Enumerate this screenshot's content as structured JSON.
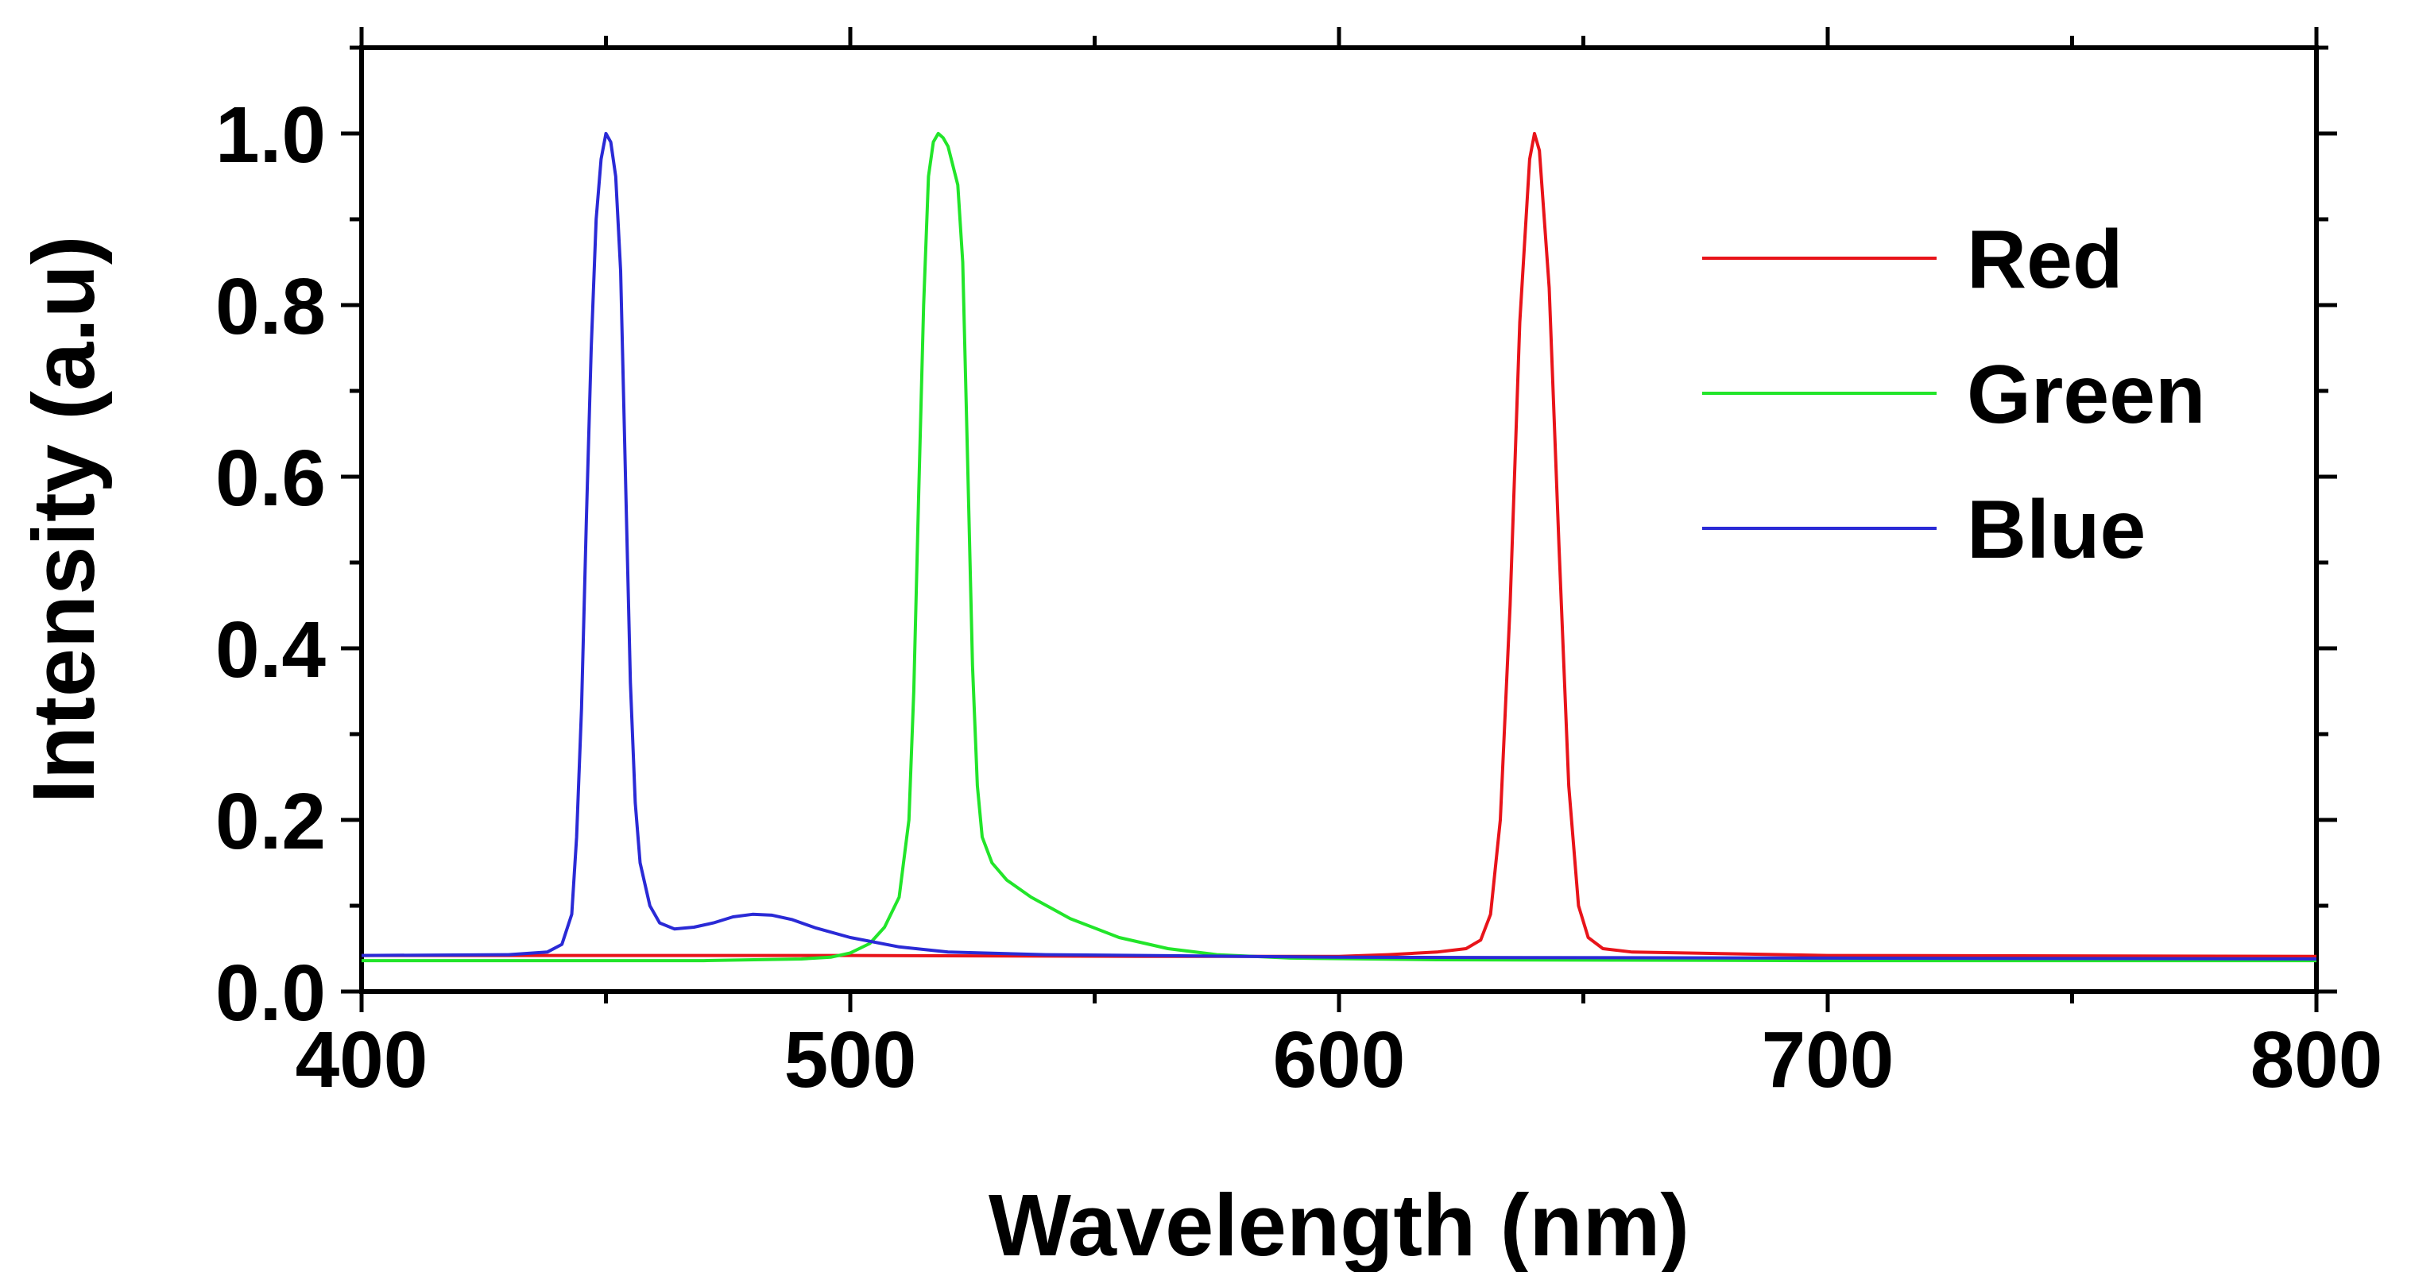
{
  "chart_data": {
    "type": "line",
    "title": "",
    "xlabel": "Wavelength (nm)",
    "ylabel": "Intensity (a.u)",
    "xlim": [
      400,
      800
    ],
    "ylim": [
      0.0,
      1.1
    ],
    "xticks": [
      400,
      500,
      600,
      700,
      800
    ],
    "xtick_labels": [
      "400",
      "500",
      "600",
      "700",
      "800"
    ],
    "yticks": [
      0.0,
      0.2,
      0.4,
      0.6,
      0.8,
      1.0
    ],
    "ytick_labels": [
      "0.0",
      "0.2",
      "0.4",
      "0.6",
      "0.8",
      "1.0"
    ],
    "grid": false,
    "legend_position": "top-right",
    "series": [
      {
        "name": "Red",
        "color": "#e8141a",
        "points": [
          [
            400,
            0.042
          ],
          [
            500,
            0.042
          ],
          [
            560,
            0.041
          ],
          [
            600,
            0.041
          ],
          [
            610,
            0.043
          ],
          [
            620,
            0.046
          ],
          [
            626,
            0.05
          ],
          [
            629,
            0.06
          ],
          [
            631,
            0.09
          ],
          [
            633,
            0.2
          ],
          [
            635,
            0.45
          ],
          [
            637,
            0.78
          ],
          [
            639,
            0.97
          ],
          [
            640,
            1.0
          ],
          [
            641,
            0.98
          ],
          [
            643,
            0.82
          ],
          [
            645,
            0.52
          ],
          [
            647,
            0.24
          ],
          [
            649,
            0.1
          ],
          [
            651,
            0.063
          ],
          [
            654,
            0.05
          ],
          [
            660,
            0.046
          ],
          [
            700,
            0.042
          ],
          [
            800,
            0.041
          ]
        ]
      },
      {
        "name": "Green",
        "color": "#22e52a",
        "points": [
          [
            400,
            0.036
          ],
          [
            470,
            0.036
          ],
          [
            490,
            0.038
          ],
          [
            496,
            0.04
          ],
          [
            500,
            0.045
          ],
          [
            504,
            0.056
          ],
          [
            507,
            0.075
          ],
          [
            510,
            0.11
          ],
          [
            512,
            0.2
          ],
          [
            513,
            0.35
          ],
          [
            514,
            0.58
          ],
          [
            515,
            0.8
          ],
          [
            516,
            0.95
          ],
          [
            517,
            0.99
          ],
          [
            518,
            1.0
          ],
          [
            519,
            0.995
          ],
          [
            520,
            0.985
          ],
          [
            522,
            0.94
          ],
          [
            523,
            0.85
          ],
          [
            524,
            0.62
          ],
          [
            525,
            0.38
          ],
          [
            526,
            0.24
          ],
          [
            527,
            0.18
          ],
          [
            529,
            0.15
          ],
          [
            532,
            0.13
          ],
          [
            537,
            0.11
          ],
          [
            545,
            0.085
          ],
          [
            555,
            0.063
          ],
          [
            565,
            0.05
          ],
          [
            575,
            0.043
          ],
          [
            590,
            0.039
          ],
          [
            620,
            0.037
          ],
          [
            700,
            0.036
          ],
          [
            800,
            0.036
          ]
        ]
      },
      {
        "name": "Blue",
        "color": "#2a2ad6",
        "points": [
          [
            400,
            0.042
          ],
          [
            430,
            0.043
          ],
          [
            438,
            0.046
          ],
          [
            441,
            0.055
          ],
          [
            443,
            0.09
          ],
          [
            444,
            0.18
          ],
          [
            445,
            0.33
          ],
          [
            446,
            0.55
          ],
          [
            447,
            0.75
          ],
          [
            448,
            0.9
          ],
          [
            449,
            0.97
          ],
          [
            450,
            1.0
          ],
          [
            451,
            0.99
          ],
          [
            452,
            0.95
          ],
          [
            453,
            0.84
          ],
          [
            454,
            0.6
          ],
          [
            455,
            0.36
          ],
          [
            456,
            0.22
          ],
          [
            457,
            0.15
          ],
          [
            459,
            0.1
          ],
          [
            461,
            0.08
          ],
          [
            464,
            0.073
          ],
          [
            468,
            0.075
          ],
          [
            472,
            0.08
          ],
          [
            476,
            0.087
          ],
          [
            480,
            0.09
          ],
          [
            484,
            0.089
          ],
          [
            488,
            0.084
          ],
          [
            493,
            0.074
          ],
          [
            500,
            0.063
          ],
          [
            510,
            0.052
          ],
          [
            520,
            0.046
          ],
          [
            540,
            0.043
          ],
          [
            600,
            0.04
          ],
          [
            700,
            0.039
          ],
          [
            800,
            0.038
          ]
        ]
      }
    ]
  }
}
